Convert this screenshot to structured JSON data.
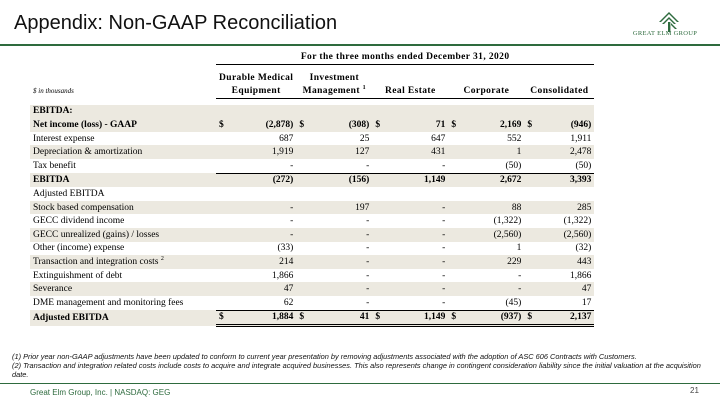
{
  "slide": {
    "title": "Appendix: Non-GAAP Reconciliation",
    "logo_text": "GREAT ELM GROUP",
    "colors": {
      "brand_green": "#2e6b3e",
      "row_shade": "#ece9e0"
    }
  },
  "table": {
    "period_header": "For the three months ended December 31, 2020",
    "units": "$ in thousands",
    "columns": [
      {
        "line1": "Durable Medical",
        "line2": "Equipment",
        "sup": ""
      },
      {
        "line1": "Investment",
        "line2": "Management",
        "sup": "1"
      },
      {
        "line1": "",
        "line2": "Real Estate",
        "sup": ""
      },
      {
        "line1": "",
        "line2": "Corporate",
        "sup": ""
      },
      {
        "line1": "",
        "line2": "Consolidated",
        "sup": ""
      }
    ],
    "section_ebitda": "EBITDA:",
    "rows": [
      {
        "label": "Net income (loss) - GAAP",
        "values": [
          "(2,878)",
          "(308)",
          "71",
          "2,169",
          "(946)"
        ]
      },
      {
        "label": "Interest expense",
        "values": [
          "687",
          "25",
          "647",
          "552",
          "1,911"
        ]
      },
      {
        "label": "Depreciation & amortization",
        "values": [
          "1,919",
          "127",
          "431",
          "1",
          "2,478"
        ]
      },
      {
        "label": "Tax benefit",
        "values": [
          "-",
          "-",
          "-",
          "(50)",
          "(50)"
        ]
      },
      {
        "label": "EBITDA",
        "values": [
          "(272)",
          "(156)",
          "1,149",
          "2,672",
          "3,393"
        ]
      },
      {
        "label": "Adjusted EBITDA",
        "values": [
          "",
          "",
          "",
          "",
          ""
        ]
      },
      {
        "label": "Stock based compensation",
        "values": [
          "-",
          "197",
          "-",
          "88",
          "285"
        ]
      },
      {
        "label": "GECC dividend income",
        "values": [
          "-",
          "-",
          "-",
          "(1,322)",
          "(1,322)"
        ]
      },
      {
        "label": "GECC unrealized (gains) /  losses",
        "values": [
          "-",
          "-",
          "-",
          "(2,560)",
          "(2,560)"
        ]
      },
      {
        "label": "Other (income) expense",
        "values": [
          "(33)",
          "-",
          "-",
          "1",
          "(32)"
        ]
      },
      {
        "label": "Transaction and integration costs",
        "sup": "2",
        "values": [
          "214",
          "-",
          "-",
          "229",
          "443"
        ]
      },
      {
        "label": "Extinguishment of debt",
        "values": [
          "1,866",
          "-",
          "-",
          "-",
          "1,866"
        ]
      },
      {
        "label": "Severance",
        "values": [
          "47",
          "-",
          "-",
          "-",
          "47"
        ]
      },
      {
        "label": "DME management and monitoring fees",
        "values": [
          "62",
          "-",
          "-",
          "(45)",
          "17"
        ]
      },
      {
        "label": "Adjusted EBITDA",
        "values": [
          "1,884",
          "41",
          "1,149",
          "(937)",
          "2,137"
        ]
      }
    ],
    "currency_symbol": "$"
  },
  "footnotes": [
    "(1) Prior year non-GAAP adjustments have been updated to conform to current year presentation by removing adjustments associated with the adoption of ASC 606 Contracts with Customers.",
    "(2) Transaction and integration related costs include costs to acquire and integrate acquired businesses.  This also represents change in contingent consideration liability since the initial valuation at the acquisition date."
  ],
  "footer": {
    "company": "Great Elm Group, Inc. | NASDAQ: GEG",
    "page_number": "21"
  }
}
